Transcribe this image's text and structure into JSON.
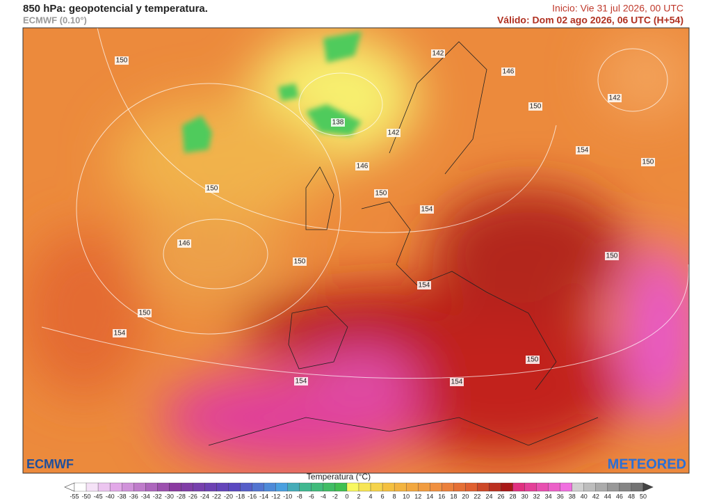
{
  "header": {
    "title": "850 hPa: geopotencial y temperatura.",
    "model": "ECMWF (0.10°)",
    "init": "Inicio: Vie 31 jul 2026, 00 UTC",
    "valid": "Válido: Dom 02 ago 2026, 06 UTC (H+54)"
  },
  "map": {
    "contour_labels": [
      150,
      142,
      146,
      142,
      138,
      142,
      150,
      154,
      150,
      146,
      150,
      150,
      154,
      146,
      150,
      150,
      154,
      150,
      154,
      150,
      154,
      154
    ]
  },
  "logos": {
    "left": "ECMWF",
    "right": "METEORED"
  },
  "colorbar": {
    "title": "Temperatura (°C)",
    "ticks": [
      -55,
      -50,
      -45,
      -40,
      -38,
      -36,
      -34,
      -32,
      -30,
      -28,
      -26,
      -24,
      -22,
      -20,
      -18,
      -16,
      -14,
      -12,
      -10,
      -8,
      -6,
      -4,
      -2,
      0,
      2,
      4,
      6,
      8,
      10,
      12,
      14,
      16,
      18,
      20,
      22,
      24,
      26,
      28,
      30,
      32,
      34,
      36,
      38,
      40,
      42,
      44,
      46,
      48,
      50
    ]
  }
}
